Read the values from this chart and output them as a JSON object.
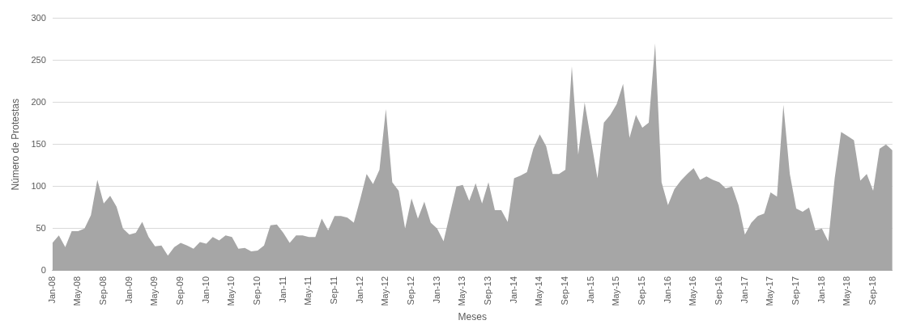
{
  "chart_data": {
    "type": "area",
    "xlabel": "Meses",
    "ylabel": "Número de Protestas",
    "categories": [
      "Jan-08",
      null,
      null,
      null,
      "May-08",
      null,
      null,
      null,
      "Sep-08",
      null,
      null,
      null,
      "Jan-09",
      null,
      null,
      null,
      "May-09",
      null,
      null,
      null,
      "Sep-09",
      null,
      null,
      null,
      "Jan-10",
      null,
      null,
      null,
      "May-10",
      null,
      null,
      null,
      "Sep-10",
      null,
      null,
      null,
      "Jan-11",
      null,
      null,
      null,
      "May-11",
      null,
      null,
      null,
      "Sep-11",
      null,
      null,
      null,
      "Jan-12",
      null,
      null,
      null,
      "May-12",
      null,
      null,
      null,
      "Sep-12",
      null,
      null,
      null,
      "Jan-13",
      null,
      null,
      null,
      "May-13",
      null,
      null,
      null,
      "Sep-13",
      null,
      null,
      null,
      "Jan-14",
      null,
      null,
      null,
      "May-14",
      null,
      null,
      null,
      "Sep-14",
      null,
      null,
      null,
      "Jan-15",
      null,
      null,
      null,
      "May-15",
      null,
      null,
      null,
      "Sep-15",
      null,
      null,
      null,
      "Jan-16",
      null,
      null,
      null,
      "May-16",
      null,
      null,
      null,
      "Sep-16",
      null,
      null,
      null,
      "Jan-17",
      null,
      null,
      null,
      "May-17",
      null,
      null,
      null,
      "Sep-17",
      null,
      null,
      null,
      "Jan-18",
      null,
      null,
      null,
      "May-18",
      null,
      null,
      null,
      "Sep-18",
      null,
      null,
      null
    ],
    "series": [
      {
        "color": "#a6a6a6",
        "values": [
          33,
          42,
          28,
          47,
          47,
          50,
          66,
          108,
          80,
          89,
          76,
          50,
          43,
          45,
          58,
          40,
          29,
          30,
          18,
          28,
          33,
          30,
          26,
          34,
          32,
          40,
          36,
          42,
          40,
          26,
          27,
          23,
          24,
          30,
          54,
          55,
          45,
          33,
          42,
          42,
          40,
          40,
          62,
          48,
          65,
          65,
          63,
          57,
          85,
          115,
          103,
          120,
          192,
          105,
          95,
          50,
          86,
          62,
          82,
          57,
          50,
          35,
          68,
          100,
          102,
          83,
          104,
          80,
          105,
          72,
          72,
          58,
          110,
          113,
          117,
          145,
          162,
          148,
          115,
          115,
          120,
          243,
          138,
          200,
          155,
          110,
          176,
          185,
          198,
          222,
          158,
          185,
          170,
          176,
          270,
          105,
          78,
          97,
          107,
          115,
          122,
          108,
          112,
          108,
          105,
          98,
          100,
          78,
          43,
          57,
          65,
          68,
          93,
          88,
          197,
          115,
          74,
          70,
          75,
          48,
          50,
          35,
          110,
          165,
          160,
          155,
          107,
          115,
          95,
          145,
          150,
          143
        ]
      }
    ],
    "ylim": [
      0,
      300
    ],
    "yticks": [
      0,
      50,
      100,
      150,
      200,
      250,
      300
    ],
    "grid": "y"
  }
}
